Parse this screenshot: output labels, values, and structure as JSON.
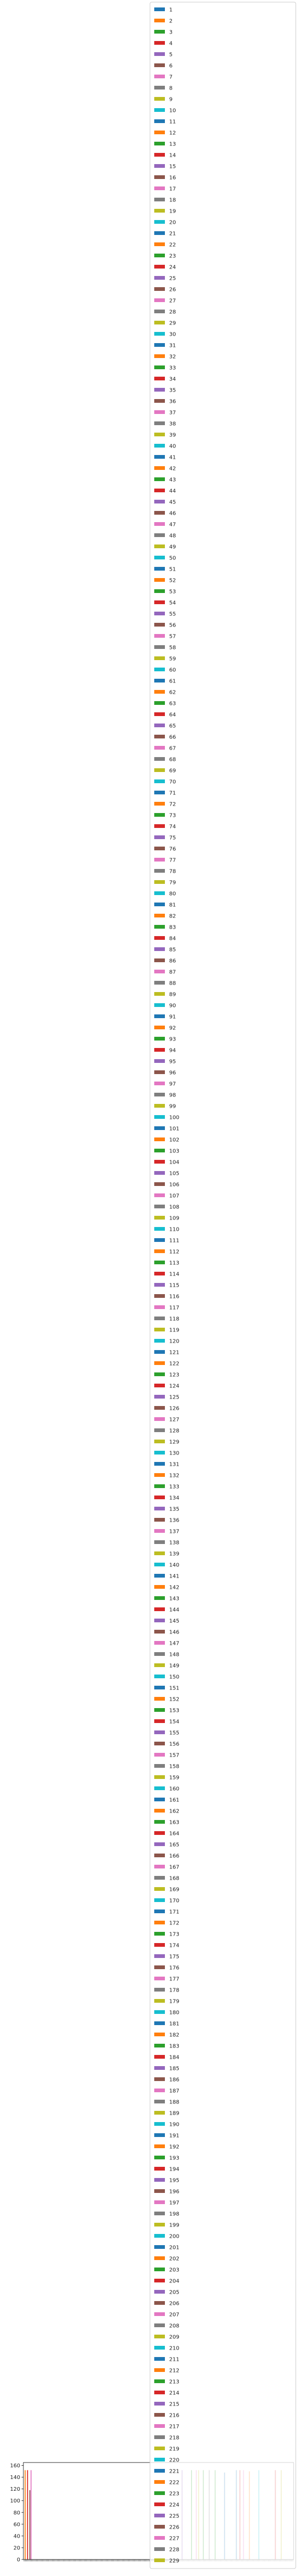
{
  "chart_data": {
    "type": "bar",
    "title": "",
    "xlabel": "",
    "ylabel": "",
    "ylim": [
      0,
      165
    ],
    "yticks": [
      0,
      20,
      40,
      60,
      80,
      100,
      120,
      140,
      160
    ],
    "grid": false,
    "legend_placement": "upper-right",
    "legend_labels": [
      "1",
      "2",
      "3",
      "4",
      "5",
      "6",
      "7",
      "8",
      "9",
      "10",
      "11",
      "12",
      "13",
      "14",
      "15",
      "16",
      "17",
      "18",
      "19",
      "20",
      "21",
      "22",
      "23",
      "24",
      "25",
      "26",
      "27",
      "28",
      "29",
      "30",
      "31",
      "32",
      "33",
      "34",
      "35",
      "36",
      "37",
      "38",
      "39",
      "40",
      "41",
      "42",
      "43",
      "44",
      "45",
      "46",
      "47",
      "48",
      "49",
      "50",
      "51",
      "52",
      "53",
      "54",
      "55",
      "56",
      "57",
      "58",
      "59",
      "60",
      "61",
      "62",
      "63",
      "64",
      "65",
      "66",
      "67",
      "68",
      "69",
      "70",
      "71",
      "72",
      "73",
      "74",
      "75",
      "76",
      "77",
      "78",
      "79",
      "80",
      "81",
      "82",
      "83",
      "84",
      "85",
      "86",
      "87",
      "88",
      "89",
      "90",
      "91",
      "92",
      "93",
      "94",
      "95",
      "96",
      "97",
      "98",
      "99",
      "100",
      "101",
      "102",
      "103",
      "104",
      "105",
      "106",
      "107",
      "108",
      "109",
      "110",
      "111",
      "112",
      "113",
      "114",
      "115",
      "116",
      "117",
      "118",
      "119",
      "120",
      "121",
      "122",
      "123",
      "124",
      "125",
      "126",
      "127",
      "128",
      "129",
      "130",
      "131",
      "132",
      "133",
      "134",
      "135",
      "136",
      "137",
      "138",
      "139",
      "140",
      "141",
      "142",
      "143",
      "144",
      "145",
      "146",
      "147",
      "148",
      "149",
      "150",
      "151",
      "152",
      "153",
      "154",
      "155",
      "156",
      "157",
      "158",
      "159",
      "160",
      "161",
      "162",
      "163",
      "164",
      "165",
      "166",
      "167",
      "168",
      "169",
      "170",
      "171",
      "172",
      "173",
      "174",
      "175",
      "176",
      "177",
      "178",
      "179",
      "180",
      "181",
      "182",
      "183",
      "184",
      "185",
      "186",
      "187",
      "188",
      "189",
      "190",
      "191",
      "192",
      "193",
      "194",
      "195",
      "196",
      "197",
      "198",
      "199",
      "200",
      "201",
      "202",
      "203",
      "204",
      "205",
      "206",
      "207",
      "208",
      "209",
      "210",
      "211",
      "212",
      "213",
      "214",
      "215",
      "216",
      "217",
      "218",
      "219",
      "220",
      "221",
      "222",
      "223",
      "224",
      "225",
      "226",
      "227",
      "228",
      "229"
    ],
    "palette": [
      "#1f77b4",
      "#ff7f0e",
      "#2ca02c",
      "#d62728",
      "#9467bd",
      "#8c564b",
      "#e377c2",
      "#7f7f7f",
      "#bcbd22",
      "#17becf"
    ],
    "visible_bars": [
      {
        "series_index": 1,
        "value": 152
      },
      {
        "series_index": 3,
        "value": 152
      },
      {
        "series_index": 5,
        "value": 118
      },
      {
        "series_index": 6,
        "value": 152
      },
      {
        "series_index": 134,
        "value": 152
      },
      {
        "series_index": 142,
        "value": 152
      },
      {
        "series_index": 146,
        "value": 152
      },
      {
        "series_index": 148,
        "value": 152
      },
      {
        "series_index": 152,
        "value": 152
      },
      {
        "series_index": 157,
        "value": 152
      },
      {
        "series_index": 162,
        "value": 152
      },
      {
        "series_index": 170,
        "value": 148
      },
      {
        "series_index": 180,
        "value": 152
      },
      {
        "series_index": 183,
        "value": 152
      },
      {
        "series_index": 186,
        "value": 152
      },
      {
        "series_index": 191,
        "value": 150
      },
      {
        "series_index": 199,
        "value": 152
      },
      {
        "series_index": 213,
        "value": 152
      },
      {
        "series_index": 218,
        "value": 152
      }
    ]
  }
}
